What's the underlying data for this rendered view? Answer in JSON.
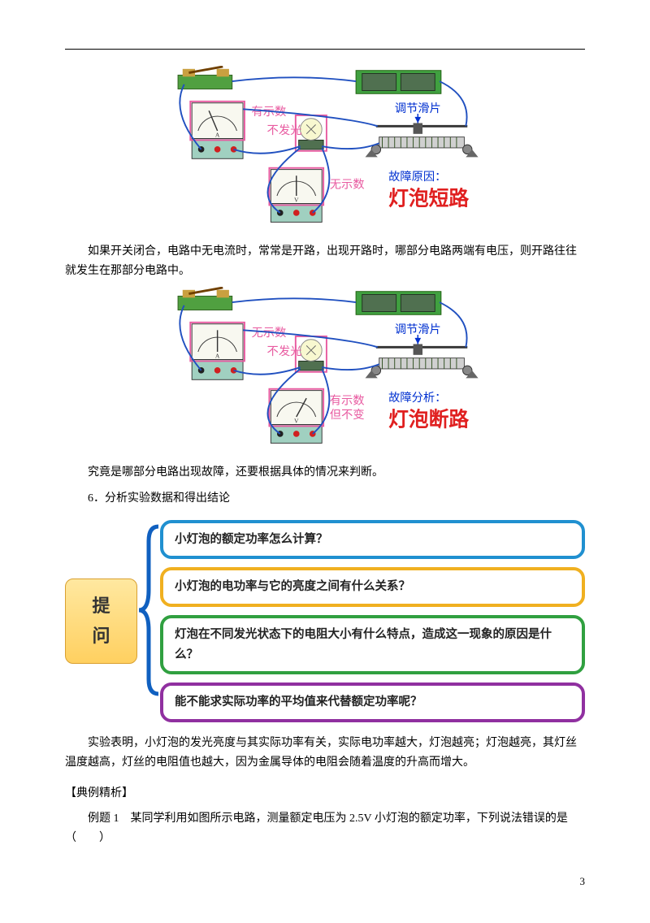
{
  "page_number": "3",
  "diagram1": {
    "ammeter_label": "有示数",
    "bulb_label": "不发光",
    "voltmeter_label": "无示数",
    "slider_label": "调节滑片",
    "fault_prefix": "故障原因：",
    "fault_text": "灯泡短路",
    "colors": {
      "magenta": "#e85aa0",
      "blue": "#0030d0",
      "red": "#e02020",
      "meter_face": "#f8f8f0",
      "meter_base": "#a0d0c0",
      "wire": "#2050c0",
      "switch_base": "#50a040",
      "rheostat": "#40a040",
      "box_border": "#e85aa0"
    }
  },
  "para1": "如果开关闭合，电路中无电流时，常常是开路，出现开路时，哪部分电路两端有电压，则开路往往就发生在那部分电路中。",
  "diagram2": {
    "ammeter_label": "无示数",
    "bulb_label": "不发光",
    "voltmeter_label1": "有示数",
    "voltmeter_label2": "但不变",
    "slider_label": "调节滑片",
    "fault_prefix": "故障分析：",
    "fault_text": "灯泡断路"
  },
  "para2": "究竟是哪部分电路出现故障，还要根据具体的情况来判断。",
  "item6": "6．分析实验数据和得出结论",
  "infographic": {
    "tiwen": "提问",
    "questions": [
      {
        "text": "小灯泡的额定功率怎么计算？",
        "border": "#2090d0"
      },
      {
        "text": "小灯泡的电功率与它的亮度之间有什么关系？",
        "border": "#f0b020"
      },
      {
        "text": "灯泡在不同发光状态下的电阻大小有什么特点，造成这一现象的原因是什么？",
        "border": "#30a040"
      },
      {
        "text": "能不能求实际功率的平均值来代替额定功率呢？",
        "border": "#9030a0"
      }
    ]
  },
  "para3": "实验表明，小灯泡的发光亮度与其实际功率有关，实际电功率越大，灯泡越亮；灯泡越亮，其灯丝温度越高，灯丝的电阻值也越大，因为金属导体的电阻会随着温度的升高而增大。",
  "section_head": "【典例精析】",
  "example1": "例题 1　某同学利用如图所示电路，测量额定电压为 2.5V 小灯泡的额定功率，下列说法错误的是（　　）"
}
